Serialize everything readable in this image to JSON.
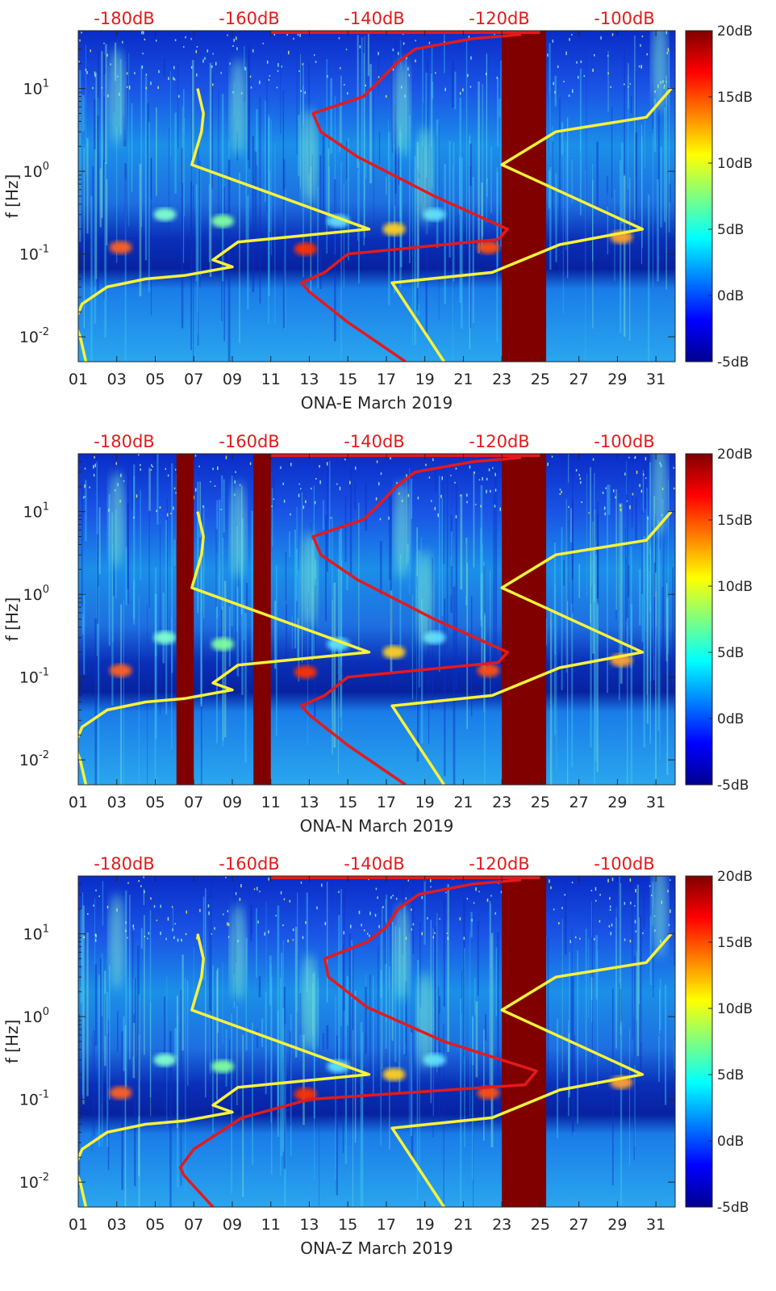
{
  "chart_data": [
    {
      "type": "heatmap",
      "xlabel": "ONA-E March 2019",
      "ylabel": "f [Hz]",
      "x_tick_labels": [
        "01",
        "03",
        "05",
        "07",
        "09",
        "11",
        "13",
        "15",
        "17",
        "19",
        "21",
        "23",
        "25",
        "27",
        "29",
        "31"
      ],
      "x_range_days": [
        1,
        32
      ],
      "ylim_hz": [
        0.005,
        50
      ],
      "y_scale": "log",
      "y_tick_labels": [
        {
          "value": 0.01,
          "base": "10",
          "exp": "-2"
        },
        {
          "value": 0.1,
          "base": "10",
          "exp": "-1"
        },
        {
          "value": 1,
          "base": "10",
          "exp": "0"
        },
        {
          "value": 10,
          "base": "10",
          "exp": "1"
        }
      ],
      "top_axis_labels": [
        "-180dB",
        "-160dB",
        "-140dB",
        "-120dB",
        "-100dB"
      ],
      "colorbar": {
        "labels": [
          "20dB",
          "15dB",
          "10dB",
          "5dB",
          "0dB",
          "-5dB"
        ],
        "range_db": [
          -5,
          20
        ]
      },
      "saturated_gaps_days": [
        [
          23.0,
          25.3
        ]
      ],
      "yellow_curve": [
        {
          "name": "",
          "points": [
            [
              1.4,
              0.005
            ],
            [
              1.1,
              0.01
            ],
            [
              0.8,
              0.015
            ],
            [
              1.2,
              0.025
            ],
            [
              2.5,
              0.04
            ],
            [
              4.5,
              0.05
            ],
            [
              6.5,
              0.055
            ],
            [
              9.0,
              0.07
            ],
            [
              8.0,
              0.085
            ],
            [
              9.3,
              0.14
            ],
            [
              16.1,
              0.2
            ],
            [
              6.9,
              1.2
            ],
            [
              7.4,
              3.0
            ],
            [
              7.5,
              5.0
            ],
            [
              7.2,
              10.0
            ]
          ]
        },
        {
          "name": "",
          "points": [
            [
              20.0,
              0.005
            ],
            [
              17.3,
              0.045
            ],
            [
              22.5,
              0.06
            ],
            [
              26.0,
              0.13
            ],
            [
              30.3,
              0.2
            ],
            [
              23.0,
              1.2
            ],
            [
              25.8,
              3.0
            ],
            [
              30.5,
              4.5
            ],
            [
              31.8,
              10.0
            ]
          ]
        }
      ],
      "red_curve": [
        [
          18.0,
          0.005
        ],
        [
          15.0,
          0.015
        ],
        [
          13.0,
          0.035
        ],
        [
          12.6,
          0.045
        ],
        [
          13.8,
          0.06
        ],
        [
          15.0,
          0.1
        ],
        [
          22.8,
          0.15
        ],
        [
          23.3,
          0.2
        ],
        [
          19.5,
          0.5
        ],
        [
          15.5,
          1.5
        ],
        [
          13.6,
          3.0
        ],
        [
          13.2,
          5.0
        ],
        [
          15.8,
          8.0
        ],
        [
          16.6,
          12.0
        ],
        [
          17.5,
          20.0
        ],
        [
          18.5,
          30.0
        ],
        [
          21.5,
          40.0
        ],
        [
          24.0,
          45.0
        ]
      ],
      "gap_color": "#800000"
    },
    {
      "type": "heatmap",
      "xlabel": "ONA-N March 2019",
      "ylabel": "f [Hz]",
      "x_tick_labels": [
        "01",
        "03",
        "05",
        "07",
        "09",
        "11",
        "13",
        "15",
        "17",
        "19",
        "21",
        "23",
        "25",
        "27",
        "29",
        "31"
      ],
      "x_range_days": [
        1,
        32
      ],
      "ylim_hz": [
        0.005,
        50
      ],
      "y_scale": "log",
      "y_tick_labels": [
        {
          "value": 0.01,
          "base": "10",
          "exp": "-2"
        },
        {
          "value": 0.1,
          "base": "10",
          "exp": "-1"
        },
        {
          "value": 1,
          "base": "10",
          "exp": "0"
        },
        {
          "value": 10,
          "base": "10",
          "exp": "1"
        }
      ],
      "top_axis_labels": [
        "-180dB",
        "-160dB",
        "-140dB",
        "-120dB",
        "-100dB"
      ],
      "colorbar": {
        "labels": [
          "20dB",
          "15dB",
          "10dB",
          "5dB",
          "0dB",
          "-5dB"
        ],
        "range_db": [
          -5,
          20
        ]
      },
      "saturated_gaps_days": [
        [
          6.1,
          7.0
        ],
        [
          10.1,
          11.0
        ],
        [
          23.0,
          25.3
        ]
      ],
      "yellow_curve": [
        {
          "name": "",
          "points": [
            [
              1.4,
              0.005
            ],
            [
              1.1,
              0.01
            ],
            [
              0.8,
              0.015
            ],
            [
              1.2,
              0.025
            ],
            [
              2.5,
              0.04
            ],
            [
              4.5,
              0.05
            ],
            [
              6.5,
              0.055
            ],
            [
              9.0,
              0.07
            ],
            [
              8.0,
              0.085
            ],
            [
              9.3,
              0.14
            ],
            [
              16.1,
              0.2
            ],
            [
              6.9,
              1.2
            ],
            [
              7.4,
              3.0
            ],
            [
              7.5,
              5.0
            ],
            [
              7.2,
              10.0
            ]
          ]
        },
        {
          "name": "",
          "points": [
            [
              20.0,
              0.005
            ],
            [
              17.3,
              0.045
            ],
            [
              22.5,
              0.06
            ],
            [
              26.0,
              0.13
            ],
            [
              30.3,
              0.2
            ],
            [
              23.0,
              1.2
            ],
            [
              25.8,
              3.0
            ],
            [
              30.5,
              4.5
            ],
            [
              31.8,
              10.0
            ]
          ]
        }
      ],
      "red_curve": [
        [
          18.0,
          0.005
        ],
        [
          15.0,
          0.015
        ],
        [
          13.0,
          0.035
        ],
        [
          12.6,
          0.045
        ],
        [
          13.8,
          0.06
        ],
        [
          15.0,
          0.1
        ],
        [
          22.8,
          0.15
        ],
        [
          23.3,
          0.2
        ],
        [
          19.5,
          0.5
        ],
        [
          15.5,
          1.5
        ],
        [
          13.6,
          3.0
        ],
        [
          13.2,
          5.0
        ],
        [
          15.8,
          8.0
        ],
        [
          16.6,
          12.0
        ],
        [
          17.5,
          20.0
        ],
        [
          18.5,
          30.0
        ],
        [
          21.5,
          40.0
        ],
        [
          24.0,
          45.0
        ]
      ],
      "gap_color": "#800000"
    },
    {
      "type": "heatmap",
      "xlabel": "ONA-Z March 2019",
      "ylabel": "f [Hz]",
      "x_tick_labels": [
        "01",
        "03",
        "05",
        "07",
        "09",
        "11",
        "13",
        "15",
        "17",
        "19",
        "21",
        "23",
        "25",
        "27",
        "29",
        "31"
      ],
      "x_range_days": [
        1,
        32
      ],
      "ylim_hz": [
        0.005,
        50
      ],
      "y_scale": "log",
      "y_tick_labels": [
        {
          "value": 0.01,
          "base": "10",
          "exp": "-2"
        },
        {
          "value": 0.1,
          "base": "10",
          "exp": "-1"
        },
        {
          "value": 1,
          "base": "10",
          "exp": "0"
        },
        {
          "value": 10,
          "base": "10",
          "exp": "1"
        }
      ],
      "top_axis_labels": [
        "-180dB",
        "-160dB",
        "-140dB",
        "-120dB",
        "-100dB"
      ],
      "colorbar": {
        "labels": [
          "20dB",
          "15dB",
          "10dB",
          "5dB",
          "0dB",
          "-5dB"
        ],
        "range_db": [
          -5,
          20
        ]
      },
      "saturated_gaps_days": [
        [
          23.0,
          25.3
        ]
      ],
      "yellow_curve": [
        {
          "name": "",
          "points": [
            [
              1.4,
              0.005
            ],
            [
              1.1,
              0.01
            ],
            [
              0.8,
              0.015
            ],
            [
              1.2,
              0.025
            ],
            [
              2.5,
              0.04
            ],
            [
              4.5,
              0.05
            ],
            [
              6.5,
              0.055
            ],
            [
              9.0,
              0.07
            ],
            [
              8.0,
              0.085
            ],
            [
              9.3,
              0.14
            ],
            [
              16.1,
              0.2
            ],
            [
              6.9,
              1.2
            ],
            [
              7.4,
              3.0
            ],
            [
              7.5,
              5.0
            ],
            [
              7.2,
              10.0
            ]
          ]
        },
        {
          "name": "",
          "points": [
            [
              20.0,
              0.005
            ],
            [
              17.3,
              0.045
            ],
            [
              22.5,
              0.06
            ],
            [
              26.0,
              0.13
            ],
            [
              30.3,
              0.2
            ],
            [
              23.0,
              1.2
            ],
            [
              25.8,
              3.0
            ],
            [
              30.5,
              4.5
            ],
            [
              31.8,
              10.0
            ]
          ]
        }
      ],
      "red_curve": [
        [
          8.0,
          0.005
        ],
        [
          6.5,
          0.012
        ],
        [
          6.3,
          0.015
        ],
        [
          7.0,
          0.025
        ],
        [
          9.5,
          0.06
        ],
        [
          13.0,
          0.1
        ],
        [
          24.2,
          0.15
        ],
        [
          24.8,
          0.22
        ],
        [
          20.0,
          0.5
        ],
        [
          16.0,
          1.3
        ],
        [
          14.0,
          3.0
        ],
        [
          13.8,
          5.0
        ],
        [
          16.0,
          8.0
        ],
        [
          17.0,
          12.0
        ],
        [
          17.6,
          20.0
        ],
        [
          18.7,
          30.0
        ],
        [
          21.5,
          40.0
        ],
        [
          24.0,
          45.0
        ]
      ],
      "gap_color": "#800000"
    }
  ]
}
